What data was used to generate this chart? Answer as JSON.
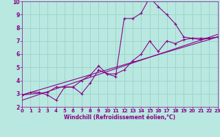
{
  "background_color": "#b8e8e0",
  "grid_color": "#9fd4cc",
  "line_color": "#880088",
  "xlabel": "Windchill (Refroidissement éolien,°C)",
  "ylim": [
    2,
    10
  ],
  "xlim": [
    0,
    23
  ],
  "yticks": [
    2,
    3,
    4,
    5,
    6,
    7,
    8,
    9,
    10
  ],
  "xticks": [
    0,
    1,
    2,
    3,
    4,
    5,
    6,
    7,
    8,
    9,
    10,
    11,
    12,
    13,
    14,
    15,
    16,
    17,
    18,
    19,
    20,
    21,
    22,
    23
  ],
  "series1_x": [
    0,
    1,
    2,
    3,
    4,
    5,
    6,
    7,
    8,
    9,
    10,
    11,
    12,
    13,
    14,
    15,
    16,
    17,
    18,
    19,
    20,
    21,
    22,
    23
  ],
  "series1_y": [
    2.9,
    3.1,
    3.1,
    2.9,
    2.5,
    3.5,
    3.5,
    3.0,
    3.8,
    4.8,
    4.5,
    4.3,
    8.7,
    8.7,
    9.1,
    10.3,
    9.6,
    9.0,
    8.3,
    7.3,
    7.2,
    7.1,
    7.2,
    7.3
  ],
  "series2_x": [
    0,
    3,
    4,
    5,
    6,
    7,
    8,
    9,
    10,
    11,
    12,
    13,
    14,
    15,
    16,
    17,
    18,
    19,
    20,
    21,
    22,
    23
  ],
  "series2_y": [
    2.9,
    3.1,
    3.5,
    3.5,
    3.5,
    4.0,
    4.4,
    5.1,
    4.5,
    4.5,
    4.8,
    5.5,
    6.0,
    7.0,
    6.2,
    7.0,
    6.8,
    7.1,
    7.2,
    7.2,
    7.2,
    7.3
  ],
  "trend1_x": [
    0,
    23
  ],
  "trend1_y": [
    2.9,
    7.3
  ],
  "trend2_x": [
    0,
    23
  ],
  "trend2_y": [
    2.5,
    7.5
  ]
}
